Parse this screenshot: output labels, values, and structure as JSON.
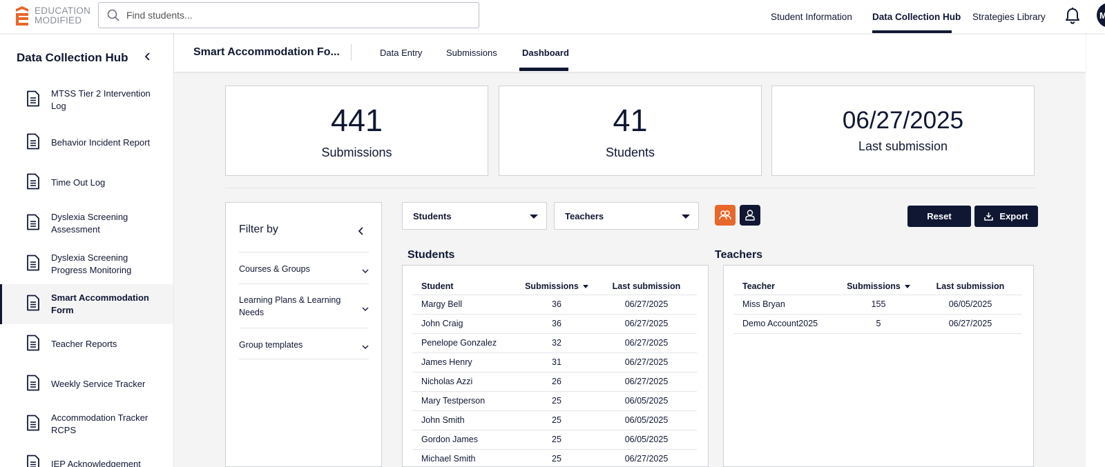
{
  "topbar": {
    "logo_line1": "EDUCATION",
    "logo_line2": "MODIFIED",
    "search_placeholder": "Find students...",
    "nav": [
      "Student Information",
      "Data Collection Hub",
      "Strategies Library"
    ],
    "active_nav": "Data Collection Hub",
    "avatar_initial": "M"
  },
  "sidebar": {
    "title": "Data Collection Hub",
    "items": [
      {
        "label": "MTSS Tier 2 Intervention Log"
      },
      {
        "label": "Behavior Incident Report"
      },
      {
        "label": "Time Out Log"
      },
      {
        "label": "Dyslexia Screening Assessment"
      },
      {
        "label": "Dyslexia Screening Progress Monitoring"
      },
      {
        "label": "Smart Accommodation Form",
        "active": true
      },
      {
        "label": "Teacher Reports"
      },
      {
        "label": "Weekly Service Tracker"
      },
      {
        "label": "Accommodation Tracker RCPS"
      },
      {
        "label": "IEP Acknowledgement"
      }
    ]
  },
  "subheader": {
    "title": "Smart Accommodation Fo...",
    "tabs": [
      "Data Entry",
      "Submissions",
      "Dashboard"
    ],
    "active_tab": "Dashboard"
  },
  "stats": [
    {
      "value": "441",
      "caption": "Submissions"
    },
    {
      "value": "41",
      "caption": "Students"
    },
    {
      "value": "06/27/2025",
      "caption": "Last submission"
    }
  ],
  "filter": {
    "title": "Filter by",
    "rows": [
      "Courses & Groups",
      "Learning Plans & Learning Needs",
      "Group templates"
    ]
  },
  "controls": {
    "students_dropdown": "Students",
    "teachers_dropdown": "Teachers",
    "reset_label": "Reset",
    "export_label": "Export"
  },
  "students_table": {
    "title": "Students",
    "headers": [
      "Student",
      "Submissions",
      "Last submission"
    ],
    "rows": [
      [
        "Margy Bell",
        "36",
        "06/27/2025"
      ],
      [
        "John Craig",
        "36",
        "06/27/2025"
      ],
      [
        "Penelope Gonzalez",
        "32",
        "06/27/2025"
      ],
      [
        "James Henry",
        "31",
        "06/27/2025"
      ],
      [
        "Nicholas Azzi",
        "26",
        "06/27/2025"
      ],
      [
        "Mary Testperson",
        "25",
        "06/05/2025"
      ],
      [
        "John Smith",
        "25",
        "06/05/2025"
      ],
      [
        "Gordon James",
        "25",
        "06/05/2025"
      ],
      [
        "Michael Smith",
        "25",
        "06/27/2025"
      ]
    ]
  },
  "teachers_table": {
    "title": "Teachers",
    "headers": [
      "Teacher",
      "Submissions",
      "Last submission"
    ],
    "rows": [
      [
        "Miss Bryan",
        "155",
        "06/05/2025"
      ],
      [
        "Demo Account2025",
        "5",
        "06/27/2025"
      ]
    ]
  },
  "colors": {
    "navy": "#0f1733",
    "orange": "#e8672a",
    "logo_gray": "#8a8f99"
  }
}
